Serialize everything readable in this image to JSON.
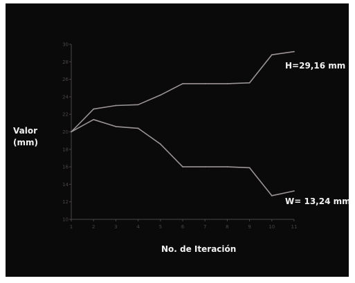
{
  "chart_data": {
    "type": "line",
    "xlabel": "No. de Iteración",
    "ylabel_line1": "Valor",
    "ylabel_line2": "(mm)",
    "x": [
      1,
      2,
      3,
      4,
      5,
      6,
      7,
      8,
      9,
      10,
      11
    ],
    "xlim": [
      1,
      11
    ],
    "ylim": [
      10,
      30
    ],
    "y_ticks": [
      10,
      12,
      14,
      16,
      18,
      20,
      22,
      24,
      26,
      28,
      30
    ],
    "grid": false,
    "series": [
      {
        "name": "H",
        "values": [
          20.0,
          22.6,
          23.0,
          23.1,
          24.2,
          25.5,
          25.5,
          25.5,
          25.6,
          28.8,
          29.16
        ]
      },
      {
        "name": "W",
        "values": [
          20.0,
          21.4,
          20.6,
          20.4,
          18.6,
          16.0,
          16.0,
          16.0,
          15.9,
          12.7,
          13.24
        ]
      }
    ],
    "annotations": {
      "h_end": "H=29,16 mm",
      "w_end": "W= 13,24 mm"
    },
    "colors": {
      "background": "#0b0a0a",
      "line": "#9a9494",
      "axis": "#4a4646",
      "label": "#f2f2f2"
    }
  }
}
